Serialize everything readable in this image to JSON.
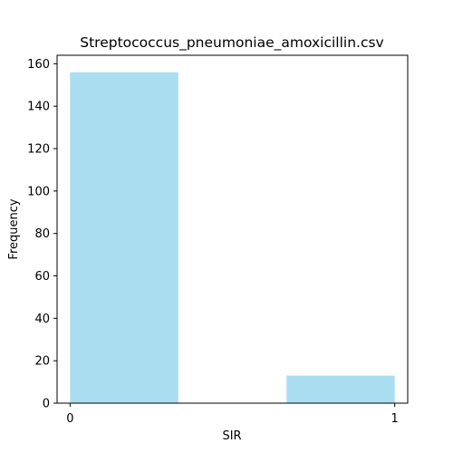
{
  "chart_data": {
    "type": "bar",
    "title": "Streptococcus_pneumoniae_amoxicillin.csv",
    "xlabel": "SIR",
    "ylabel": "Frequency",
    "xlim": [
      -0.04,
      1.04
    ],
    "ylim": [
      0,
      164
    ],
    "x_ticks": [
      "0",
      "1"
    ],
    "x_tick_values": [
      0,
      1
    ],
    "y_ticks": [
      "0",
      "20",
      "40",
      "60",
      "80",
      "100",
      "120",
      "140",
      "160"
    ],
    "y_tick_values": [
      0,
      20,
      40,
      60,
      80,
      100,
      120,
      140,
      160
    ],
    "bins": [
      {
        "x0": 0.0,
        "x1": 0.3333,
        "count": 156
      },
      {
        "x0": 0.3333,
        "x1": 0.6667,
        "count": 0
      },
      {
        "x0": 0.6667,
        "x1": 1.0,
        "count": 13
      }
    ],
    "bar_color": "#87ceeb",
    "grid": false,
    "legend": "none"
  }
}
